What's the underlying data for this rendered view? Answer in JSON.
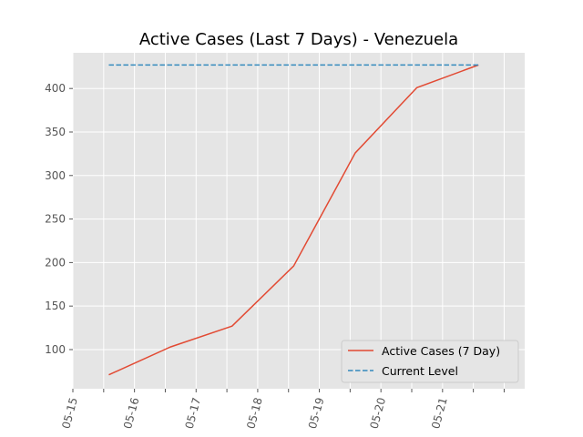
{
  "chart_data": {
    "type": "line",
    "title": "Active Cases (Last 7 Days) - Venezuela",
    "xlabel": "",
    "ylabel": "",
    "x_tick_labels": [
      "05-15",
      "05-16",
      "05-17",
      "05-18",
      "05-19",
      "05-20",
      "05-21"
    ],
    "x": [
      "05-15 14:00",
      "05-16 14:00",
      "05-17 14:00",
      "05-18 14:00",
      "05-19 14:00",
      "05-20 14:00",
      "05-21 14:00"
    ],
    "xlim": [
      "05-15 00:00",
      "05-22 08:00"
    ],
    "ylim": [
      55,
      441
    ],
    "y_ticks": [
      100,
      150,
      200,
      250,
      300,
      350,
      400
    ],
    "series": [
      {
        "name": "Active Cases (7 Day)",
        "values": [
          71,
          103,
          127,
          196,
          326,
          401,
          427
        ],
        "color": "#e24a33",
        "style": "solid"
      },
      {
        "name": "Current Level",
        "values": [
          427,
          427,
          427,
          427,
          427,
          427,
          427
        ],
        "color": "#348abd",
        "style": "dashed"
      }
    ],
    "background": "#e5e5e5",
    "grid": true,
    "legend_position": "lower-right"
  }
}
